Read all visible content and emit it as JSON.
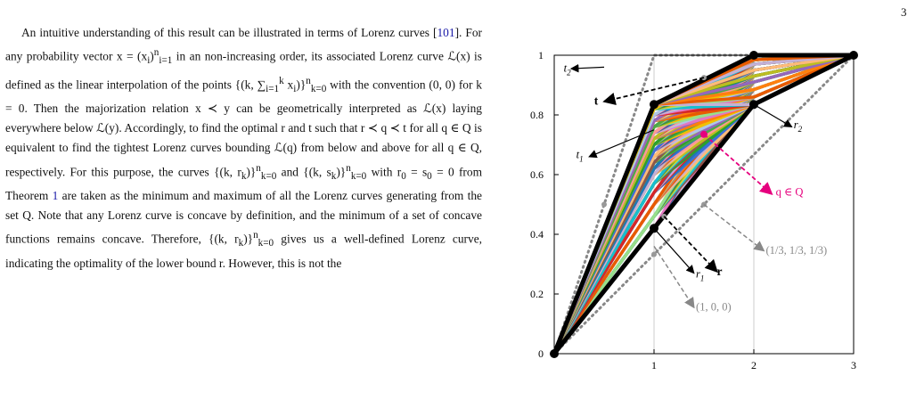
{
  "page": {
    "number": "3"
  },
  "text": {
    "s1": "An intuitive understanding of this result can be illustrated in terms of Lorenz curves [",
    "ref1": "101",
    "s2": "]. For any probability vector x = (x",
    "s3": ")",
    "s4": " in an non-increasing order, its associated Lorenz curve ℒ(x) is defined as the linear interpolation of the points {(k, ∑",
    "s5": " x",
    "s6": ")}",
    "s7": " with the convention (0, 0) for k = 0. Then the majorization relation x ≺ y can be geometrically interpreted as ℒ(x) laying everywhere below ℒ(y). Accordingly, to find the optimal r and t such that r ≺ q ≺ t for all q ∈ Q is equivalent to find the tightest Lorenz curves bounding ℒ(q) from below and above for all q ∈ Q, respectively. For this purpose, the curves {(k, r",
    "s8": ")}",
    "s9": " and {(k, s",
    "s10": ")}",
    "s11": " with r",
    "s12": " = s",
    "s13": " = 0 from Theorem ",
    "ref2": "1",
    "s14": " are taken as the minimum and maximum of all the Lorenz curves generating from the set Q. Note that any Lorenz curve is concave by definition, and the minimum of a set of concave functions remains concave. Therefore, {(k, r",
    "s15": ")}",
    "s16": " gives us a well-defined Lorenz curve, indicating the optimality of the lower bound r. However, this is not the",
    "sub_i": "i",
    "sub_k": "k",
    "sub_i1": "i=1",
    "sub_k0": "k=0",
    "sub_0": "0",
    "sup_n": "n",
    "sup_k": "k"
  },
  "figure": {
    "annotations": {
      "t2": "t2",
      "t": "t",
      "t1": "t1",
      "r2": "r2",
      "q": "q ∈ Q",
      "uniform": "(1/3, 1/3, 1/3)",
      "r1": "r1",
      "r": "r",
      "pure": "(1, 0, 0)"
    },
    "colors": {
      "bounds": "#000000",
      "reference": "#888888",
      "highlight": "#e6007e"
    }
  },
  "chart_data": {
    "type": "line",
    "xticks": [
      "1",
      "2",
      "3"
    ],
    "yticks": [
      "0",
      "0.2",
      "0.4",
      "0.6",
      "0.8",
      "1"
    ],
    "xlim": [
      0,
      3
    ],
    "ylim": [
      0,
      1
    ],
    "series": [
      {
        "x": [
          0,
          1,
          2,
          3
        ],
        "y": [
          0,
          0.835,
          1,
          1
        ]
      },
      {
        "x": [
          0,
          1,
          2,
          3
        ],
        "y": [
          0,
          0.42,
          0.835,
          1
        ]
      },
      {
        "x": [
          0,
          1,
          2,
          3
        ],
        "y": [
          0,
          1,
          1,
          1
        ]
      },
      {
        "x": [
          0,
          1,
          2,
          3
        ],
        "y": [
          0,
          0.333,
          0.667,
          1
        ]
      },
      {
        "x": [
          1.5
        ],
        "y": [
          0.735
        ]
      }
    ],
    "fill_curves_y1": [
      0.42,
      0.46,
      0.5,
      0.54,
      0.57,
      0.6,
      0.62,
      0.64,
      0.66,
      0.68,
      0.7,
      0.72,
      0.74,
      0.76,
      0.78,
      0.8,
      0.82,
      0.835
    ],
    "fill_curves_y2": [
      0.835,
      0.86,
      0.885,
      0.91,
      0.93,
      0.95,
      0.97,
      0.985,
      1
    ]
  }
}
